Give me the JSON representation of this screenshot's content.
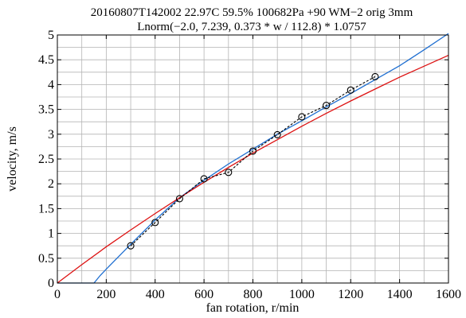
{
  "chart_data": {
    "type": "line",
    "title": "20160807T142002 22.97C 59.5% 100682Pa +90 WM−2 orig 3mm",
    "subtitle": "Lnorm(−2.0, 7.239, 0.373 * w / 112.8) * 1.0757",
    "xlabel": "fan rotation, r/min",
    "ylabel": "velocity, m/s",
    "xlim": [
      0,
      1600
    ],
    "ylim": [
      0,
      5
    ],
    "x_ticks": [
      0,
      200,
      400,
      600,
      800,
      1000,
      1200,
      1400,
      1600
    ],
    "x_tick_labels": [
      "0",
      "200",
      "400",
      "600",
      "800",
      "1000",
      "1200",
      "1400",
      "1600"
    ],
    "y_ticks": [
      0,
      0.5,
      1,
      1.5,
      2,
      2.5,
      3,
      3.5,
      4,
      4.5,
      5
    ],
    "y_tick_labels": [
      "0",
      "0.5",
      "1",
      "1.5",
      "2",
      "2.5",
      "3",
      "3.5",
      "4",
      "4.5",
      "5"
    ],
    "grid": true,
    "series": [
      {
        "style": "measured points, black circles joined by dashed line",
        "color": "#000000",
        "x": [
          300,
          400,
          500,
          600,
          700,
          800,
          900,
          1000,
          1100,
          1200,
          1300
        ],
        "y": [
          0.75,
          1.22,
          1.7,
          2.1,
          2.23,
          2.66,
          2.99,
          3.35,
          3.58,
          3.89,
          4.16
        ]
      },
      {
        "style": "blue fitted curve",
        "color": "#1f6fd1",
        "x": [
          0,
          150,
          175,
          200,
          300,
          400,
          500,
          600,
          700,
          800,
          900,
          1000,
          1100,
          1200,
          1300,
          1400,
          1500,
          1600
        ],
        "y": [
          0,
          0,
          0.15,
          0.28,
          0.78,
          1.27,
          1.72,
          2.07,
          2.4,
          2.7,
          3.0,
          3.27,
          3.55,
          3.82,
          4.1,
          4.38,
          4.7,
          5.03
        ]
      },
      {
        "style": "red fitted curve",
        "color": "#dd1111",
        "x": [
          0,
          100,
          200,
          300,
          400,
          500,
          600,
          700,
          800,
          900,
          1000,
          1100,
          1200,
          1300,
          1400,
          1500,
          1600
        ],
        "y": [
          0,
          0.37,
          0.73,
          1.07,
          1.4,
          1.72,
          2.03,
          2.33,
          2.62,
          2.89,
          3.16,
          3.42,
          3.67,
          3.91,
          4.15,
          4.37,
          4.59
        ]
      }
    ]
  }
}
